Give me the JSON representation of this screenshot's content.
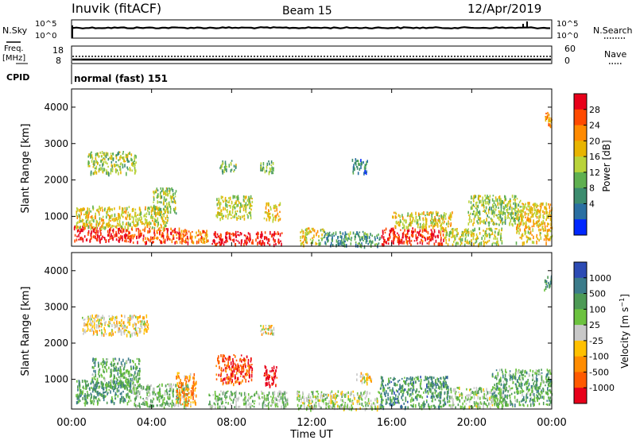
{
  "header": {
    "station": "Inuvik (fitACF)",
    "beam": "Beam 15",
    "date": "12/Apr/2019"
  },
  "panels": {
    "nsky_label": "N.Sky",
    "nsky_ticks": [
      "10^5",
      "10^0"
    ],
    "nsky_right_ticks": [
      "10^5",
      "10^0"
    ],
    "nsearch_label": "N.Search",
    "freq_label": "Freq.",
    "freq_unit": "[MHz]",
    "freq_ticks": [
      "18",
      "8"
    ],
    "nave_ticks": [
      "60",
      "0"
    ],
    "nave_label": "Nave",
    "cpid_label": "CPID",
    "cpid_value": "normal (fast) 151"
  },
  "chart_data": [
    {
      "type": "heatmap",
      "name": "power",
      "ylabel": "Slant Range [km]",
      "yticks": [
        "4000",
        "3000",
        "2000",
        "1000"
      ],
      "ytick_values": [
        4000,
        3000,
        2000,
        1000
      ],
      "ylim": [
        180,
        4500
      ],
      "xlim": [
        0,
        24
      ],
      "colorbar_label": "Power [dB]",
      "colorbar_ticks": [
        "28",
        "24",
        "20",
        "16",
        "12",
        "8",
        "4"
      ],
      "colorbar_colors": [
        "#e8001a",
        "#ff4a00",
        "#ff8a00",
        "#e8b400",
        "#b9d33a",
        "#5fb050",
        "#3c8c6e",
        "#2a6fa2",
        "#0027ff"
      ],
      "regions": [
        {
          "t": [
            0.1,
            2.8
          ],
          "r": [
            350,
            750
          ],
          "level": 0.95
        },
        {
          "t": [
            2.8,
            5.8
          ],
          "r": [
            300,
            700
          ],
          "level": 0.85
        },
        {
          "t": [
            0.2,
            4.8
          ],
          "r": [
            700,
            1300
          ],
          "level": 0.55
        },
        {
          "t": [
            0.8,
            3.2
          ],
          "r": [
            2200,
            2800
          ],
          "level": 0.45
        },
        {
          "t": [
            5.4,
            6.8
          ],
          "r": [
            300,
            650
          ],
          "level": 0.75
        },
        {
          "t": [
            7.0,
            10.5
          ],
          "r": [
            250,
            600
          ],
          "level": 0.95
        },
        {
          "t": [
            7.2,
            9.0
          ],
          "r": [
            950,
            1600
          ],
          "level": 0.5
        },
        {
          "t": [
            9.6,
            10.4
          ],
          "r": [
            900,
            1400
          ],
          "level": 0.6
        },
        {
          "t": [
            9.4,
            10.1
          ],
          "r": [
            2200,
            2550
          ],
          "level": 0.4
        },
        {
          "t": [
            7.4,
            8.2
          ],
          "r": [
            2250,
            2550
          ],
          "level": 0.4
        },
        {
          "t": [
            4.0,
            5.2
          ],
          "r": [
            1100,
            1800
          ],
          "level": 0.45
        },
        {
          "t": [
            11.4,
            12.6
          ],
          "r": [
            250,
            700
          ],
          "level": 0.55
        },
        {
          "t": [
            12.6,
            15.4
          ],
          "r": [
            200,
            600
          ],
          "level": 0.3
        },
        {
          "t": [
            15.4,
            18.6
          ],
          "r": [
            250,
            700
          ],
          "level": 0.92
        },
        {
          "t": [
            16.0,
            19.0
          ],
          "r": [
            700,
            1150
          ],
          "level": 0.55
        },
        {
          "t": [
            18.6,
            21.5
          ],
          "r": [
            250,
            700
          ],
          "level": 0.5
        },
        {
          "t": [
            19.8,
            22.5
          ],
          "r": [
            800,
            1600
          ],
          "level": 0.45
        },
        {
          "t": [
            22.2,
            24.0
          ],
          "r": [
            300,
            1400
          ],
          "level": 0.6
        },
        {
          "t": [
            14.0,
            14.8
          ],
          "r": [
            2200,
            2600
          ],
          "level": 0.25
        },
        {
          "t": [
            23.6,
            24.0
          ],
          "r": [
            3500,
            3900
          ],
          "level": 0.7
        }
      ]
    },
    {
      "type": "heatmap",
      "name": "velocity",
      "ylabel": "Slant Range [km]",
      "yticks": [
        "4000",
        "3000",
        "2000",
        "1000"
      ],
      "ytick_values": [
        4000,
        3000,
        2000,
        1000
      ],
      "ylim": [
        180,
        4500
      ],
      "xlim": [
        0,
        24
      ],
      "xticks": [
        "00:00",
        "04:00",
        "08:00",
        "12:00",
        "16:00",
        "20:00",
        "00:00"
      ],
      "xtick_values": [
        0,
        4,
        8,
        12,
        16,
        20,
        24
      ],
      "xlabel": "Time UT",
      "colorbar_label": "Velocity [m s",
      "colorbar_ticks": [
        "1000",
        "500",
        "100",
        "25",
        "-25",
        "-100",
        "-500",
        "-1000"
      ],
      "colorbar_colors": [
        "#2c4bb4",
        "#3b7b8a",
        "#4d9a55",
        "#6cc23f",
        "#c8c8c8",
        "#ffc000",
        "#ff8c00",
        "#ff5a00",
        "#e8001a"
      ],
      "regions": [
        {
          "t": [
            0.2,
            3.0
          ],
          "r": [
            350,
            1000
          ],
          "level": 0.72
        },
        {
          "t": [
            1.0,
            3.4
          ],
          "r": [
            800,
            1600
          ],
          "level": 0.7
        },
        {
          "t": [
            3.0,
            5.8
          ],
          "r": [
            250,
            900
          ],
          "level": 0.62
        },
        {
          "t": [
            0.5,
            3.8
          ],
          "r": [
            2250,
            2800
          ],
          "level": 0.45
        },
        {
          "t": [
            7.2,
            9.0
          ],
          "r": [
            900,
            1700
          ],
          "level": 0.15
        },
        {
          "t": [
            9.6,
            10.3
          ],
          "r": [
            850,
            1400
          ],
          "level": 0.02
        },
        {
          "t": [
            9.4,
            10.1
          ],
          "r": [
            2250,
            2550
          ],
          "level": 0.45
        },
        {
          "t": [
            6.8,
            10.8
          ],
          "r": [
            250,
            700
          ],
          "level": 0.62
        },
        {
          "t": [
            11.2,
            15.4
          ],
          "r": [
            200,
            700
          ],
          "level": 0.55
        },
        {
          "t": [
            15.4,
            18.8
          ],
          "r": [
            250,
            1100
          ],
          "level": 0.75
        },
        {
          "t": [
            18.8,
            21.8
          ],
          "r": [
            250,
            800
          ],
          "level": 0.58
        },
        {
          "t": [
            21.0,
            24.0
          ],
          "r": [
            300,
            1300
          ],
          "level": 0.68
        },
        {
          "t": [
            14.2,
            15.0
          ],
          "r": [
            900,
            1200
          ],
          "level": 0.45
        },
        {
          "t": [
            5.2,
            6.2
          ],
          "r": [
            300,
            1200
          ],
          "level": 0.3
        },
        {
          "t": [
            23.6,
            24.0
          ],
          "r": [
            3500,
            3900
          ],
          "level": 0.78
        }
      ]
    }
  ]
}
